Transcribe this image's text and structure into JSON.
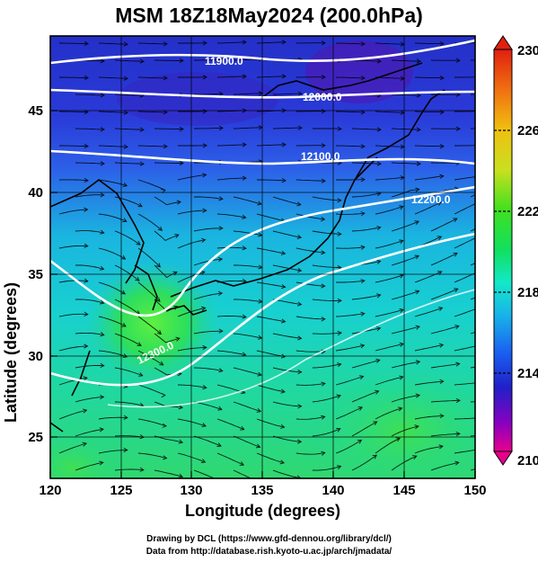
{
  "title": "MSM 18Z18May2024 (200.0hPa)",
  "axes": {
    "xlabel": "Longitude (degrees)",
    "ylabel": "Latitude  (degrees)",
    "x_ticks": [
      "120",
      "125",
      "130",
      "135",
      "140",
      "145",
      "150"
    ],
    "y_ticks": [
      "25",
      "30",
      "35",
      "40",
      "45"
    ]
  },
  "colorbar": {
    "min": 210,
    "max": 230,
    "tick_labels": [
      "230",
      "226",
      "222",
      "218",
      "214",
      "210"
    ],
    "colors": [
      "#e8008c",
      "#8a00c0",
      "#2020c8",
      "#1a5cf0",
      "#18b4e8",
      "#14e8c8",
      "#10e060",
      "#40e020",
      "#c8e020",
      "#f0c010",
      "#f07010",
      "#e02010"
    ]
  },
  "contour_labels": [
    "11900.0",
    "12000.0",
    "12100.0",
    "12200.0",
    "12300.0"
  ],
  "credits": {
    "line1": "Drawing by DCL (https://www.gfd-dennou.org/library/dcl/)",
    "line2": "Data from http://database.rish.kyoto-u.ac.jp/arch/jmadata/"
  }
}
